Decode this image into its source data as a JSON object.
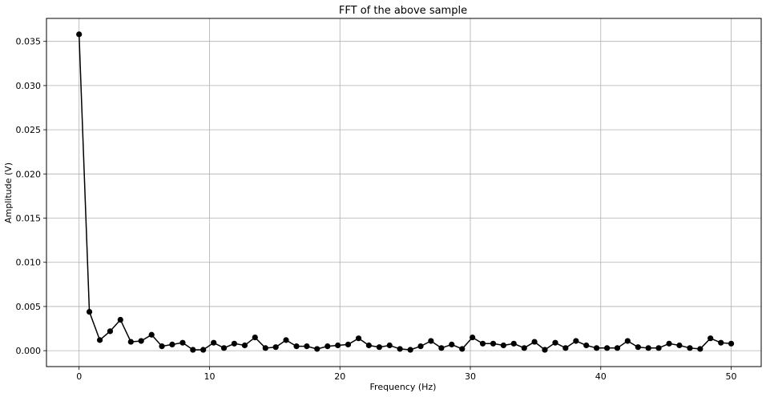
{
  "chart_data": {
    "type": "line",
    "title": "FFT of the above sample",
    "xlabel": "Frequency (Hz)",
    "ylabel": "Amplitude (V)",
    "xlim": [
      -2.5,
      52.3
    ],
    "ylim": [
      -0.0018,
      0.0376
    ],
    "xticks": [
      0,
      10,
      20,
      30,
      40,
      50
    ],
    "yticks": [
      0.0,
      0.005,
      0.01,
      0.015,
      0.02,
      0.025,
      0.03,
      0.035
    ],
    "xtick_labels": [
      "0",
      "10",
      "20",
      "30",
      "40",
      "50"
    ],
    "ytick_labels": [
      "0.000",
      "0.005",
      "0.010",
      "0.015",
      "0.020",
      "0.025",
      "0.030",
      "0.035"
    ],
    "grid": true,
    "series": [
      {
        "name": "FFT amplitude",
        "color": "#000000",
        "marker": "circle",
        "x": [
          0.0,
          0.79,
          1.59,
          2.38,
          3.17,
          3.97,
          4.76,
          5.56,
          6.35,
          7.14,
          7.94,
          8.73,
          9.52,
          10.32,
          11.11,
          11.9,
          12.7,
          13.49,
          14.29,
          15.08,
          15.87,
          16.67,
          17.46,
          18.25,
          19.05,
          19.84,
          20.63,
          21.43,
          22.22,
          23.02,
          23.81,
          24.6,
          25.4,
          26.19,
          26.98,
          27.78,
          28.57,
          29.37,
          30.16,
          30.95,
          31.75,
          32.54,
          33.33,
          34.13,
          34.92,
          35.71,
          36.51,
          37.3,
          38.1,
          38.89,
          39.68,
          40.48,
          41.27,
          42.06,
          42.86,
          43.65,
          44.44,
          45.24,
          46.03,
          46.83,
          47.62,
          48.41,
          49.21,
          50.0
        ],
        "values": [
          0.0358,
          0.0044,
          0.0012,
          0.0022,
          0.0035,
          0.001,
          0.0011,
          0.0018,
          0.0005,
          0.0007,
          0.0009,
          0.0001,
          0.0001,
          0.0009,
          0.0003,
          0.0008,
          0.0006,
          0.0015,
          0.0003,
          0.0004,
          0.0012,
          0.0005,
          0.0005,
          0.0002,
          0.0005,
          0.0006,
          0.0007,
          0.0014,
          0.0006,
          0.0004,
          0.0006,
          0.0002,
          0.0001,
          0.0005,
          0.0011,
          0.0003,
          0.0007,
          0.0002,
          0.0015,
          0.0008,
          0.0008,
          0.0006,
          0.0008,
          0.0003,
          0.001,
          0.0001,
          0.0009,
          0.0003,
          0.0011,
          0.0006,
          0.0003,
          0.0003,
          0.0003,
          0.0011,
          0.0004,
          0.0003,
          0.0003,
          0.0008,
          0.0006,
          0.0003,
          0.0002,
          0.0014,
          0.0009,
          0.0008
        ]
      }
    ]
  }
}
